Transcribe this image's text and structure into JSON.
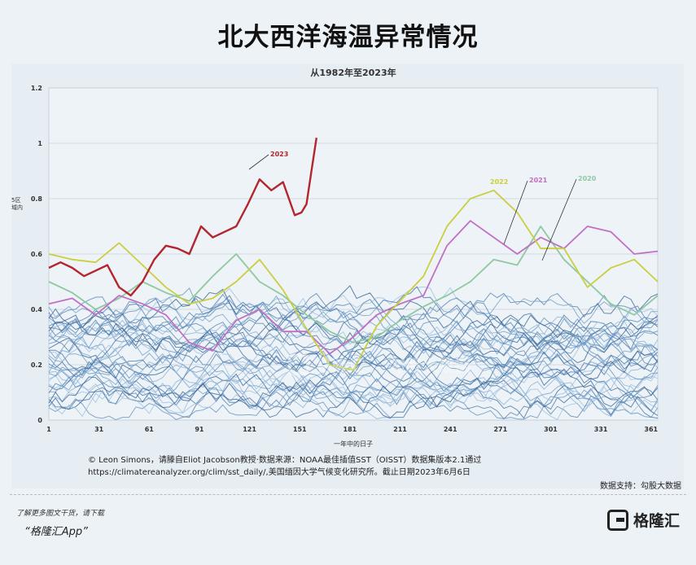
{
  "header": {
    "title": "北大西洋海温异常情况"
  },
  "chart_data": {
    "type": "line",
    "title": "从1982年至2023年",
    "xlabel": "一年中的日子",
    "ylabel": "5区\n域内",
    "xlim": [
      1,
      365
    ],
    "ylim": [
      0,
      1.2
    ],
    "xticks": [
      1,
      31,
      61,
      91,
      121,
      151,
      181,
      211,
      241,
      271,
      301,
      331,
      361
    ],
    "yticks": [
      0,
      0.2,
      0.4,
      0.6,
      0.8,
      1,
      1.2
    ],
    "ytick_labels": [
      "0",
      "0.2",
      "0.4",
      "0.6",
      "0.8",
      "1",
      "1.2"
    ],
    "grid": "horizontal",
    "annotations": [
      "2023",
      "2022",
      "2021",
      "2020"
    ],
    "series": [
      {
        "name": "2023",
        "color": "#b3262d",
        "x": [
          1,
          8,
          15,
          22,
          29,
          36,
          43,
          50,
          57,
          64,
          71,
          78,
          85,
          92,
          99,
          106,
          113,
          120,
          127,
          134,
          141,
          148,
          152,
          155,
          158,
          161
        ],
        "y": [
          0.55,
          0.57,
          0.55,
          0.52,
          0.54,
          0.56,
          0.48,
          0.45,
          0.5,
          0.58,
          0.63,
          0.62,
          0.6,
          0.7,
          0.66,
          0.68,
          0.7,
          0.78,
          0.87,
          0.83,
          0.86,
          0.74,
          0.75,
          0.78,
          0.9,
          1.02
        ]
      },
      {
        "name": "2022",
        "color": "#c9cf3e",
        "x": [
          1,
          15,
          29,
          43,
          57,
          71,
          85,
          99,
          113,
          127,
          141,
          155,
          169,
          183,
          197,
          211,
          225,
          239,
          253,
          267,
          281,
          295,
          309,
          323,
          337,
          351,
          365
        ],
        "y": [
          0.6,
          0.58,
          0.57,
          0.64,
          0.56,
          0.48,
          0.42,
          0.44,
          0.5,
          0.58,
          0.47,
          0.33,
          0.2,
          0.18,
          0.34,
          0.43,
          0.52,
          0.7,
          0.8,
          0.83,
          0.75,
          0.62,
          0.62,
          0.48,
          0.55,
          0.58,
          0.5
        ]
      },
      {
        "name": "2021",
        "color": "#c170c4",
        "x": [
          1,
          15,
          29,
          43,
          57,
          71,
          85,
          99,
          113,
          127,
          141,
          155,
          169,
          183,
          197,
          211,
          225,
          239,
          253,
          267,
          281,
          295,
          309,
          323,
          337,
          351,
          365
        ],
        "y": [
          0.42,
          0.44,
          0.38,
          0.45,
          0.42,
          0.38,
          0.28,
          0.25,
          0.36,
          0.4,
          0.32,
          0.32,
          0.24,
          0.3,
          0.38,
          0.42,
          0.45,
          0.63,
          0.72,
          0.66,
          0.6,
          0.66,
          0.62,
          0.7,
          0.68,
          0.6,
          0.61
        ]
      },
      {
        "name": "2020",
        "color": "#8fc9a1",
        "x": [
          1,
          15,
          29,
          43,
          57,
          71,
          85,
          99,
          113,
          127,
          141,
          155,
          169,
          183,
          197,
          211,
          225,
          239,
          253,
          267,
          281,
          295,
          309,
          323,
          337,
          351,
          365
        ],
        "y": [
          0.5,
          0.46,
          0.4,
          0.44,
          0.5,
          0.46,
          0.43,
          0.52,
          0.6,
          0.5,
          0.45,
          0.38,
          0.32,
          0.28,
          0.3,
          0.36,
          0.41,
          0.45,
          0.5,
          0.58,
          0.56,
          0.7,
          0.58,
          0.5,
          0.42,
          0.38,
          0.45
        ]
      }
    ],
    "background_series": {
      "count": 38,
      "color": "#4f7fae"
    }
  },
  "source_note": "© Leon Simons，请滕自Eliot Jacobson教授·数据来源：NOAA最佳插值SST（OISST）数据集版本2.1通过https://climatereanalyzer.org/clim/sst_daily/,美国缅因大学气候变化研究所。截止日期2023年6月6日",
  "data_support": "数据支持：勾股大数据",
  "promo": {
    "line1": "了解更多图文干货，请下载",
    "line2": "“格隆汇App”"
  },
  "brand": {
    "name": "格隆汇"
  },
  "watermark": {
    "left": "格隆汇",
    "right": "勾股大数据"
  }
}
